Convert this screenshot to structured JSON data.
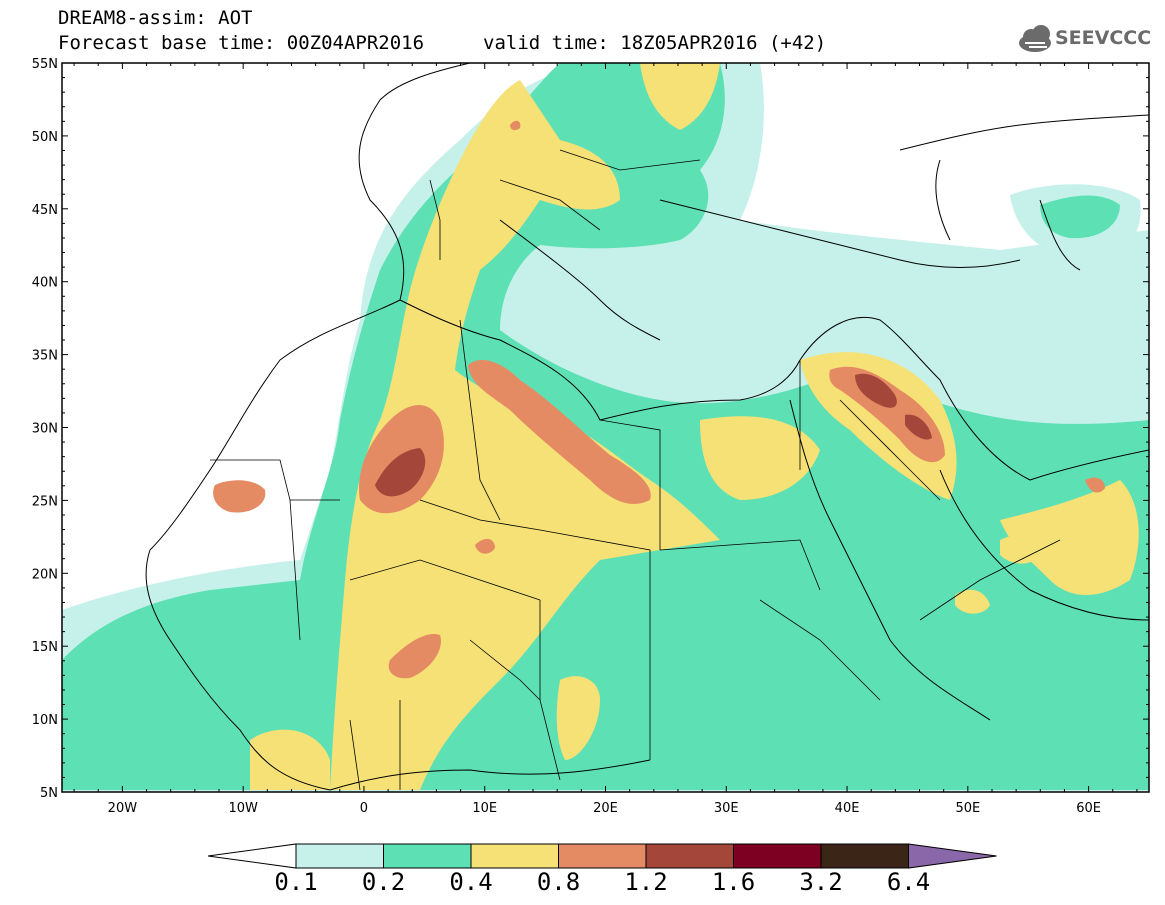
{
  "header": {
    "line1": "DREAM8-assim: AOT",
    "line2": "Forecast base time: 00Z04APR2016",
    "valid_time": "valid time: 18Z05APR2016 (+42)"
  },
  "logo": {
    "text": "SEEVCCC",
    "icon": "cloud-icon"
  },
  "chart_data": {
    "type": "heatmap",
    "title": "DREAM8-assim: AOT",
    "variable": "AOT",
    "projection": "lat-lon",
    "x_axis": {
      "ticks": [
        "20W",
        "10W",
        "0",
        "10E",
        "20E",
        "30E",
        "40E",
        "50E",
        "60E"
      ],
      "range": [
        -25,
        65
      ]
    },
    "y_axis": {
      "ticks": [
        "5N",
        "10N",
        "15N",
        "20N",
        "25N",
        "30N",
        "35N",
        "40N",
        "45N",
        "50N",
        "55N"
      ],
      "range": [
        5,
        55
      ]
    },
    "colorbar": {
      "levels": [
        "0.1",
        "0.2",
        "0.4",
        "0.8",
        "1.2",
        "1.6",
        "3.2",
        "6.4"
      ],
      "colors": [
        "#ffffff",
        "#c6f1ea",
        "#5ee0b5",
        "#f5e176",
        "#e58b63",
        "#a5463b",
        "#7d0022",
        "#3a2516",
        "#8a67a9"
      ]
    }
  }
}
